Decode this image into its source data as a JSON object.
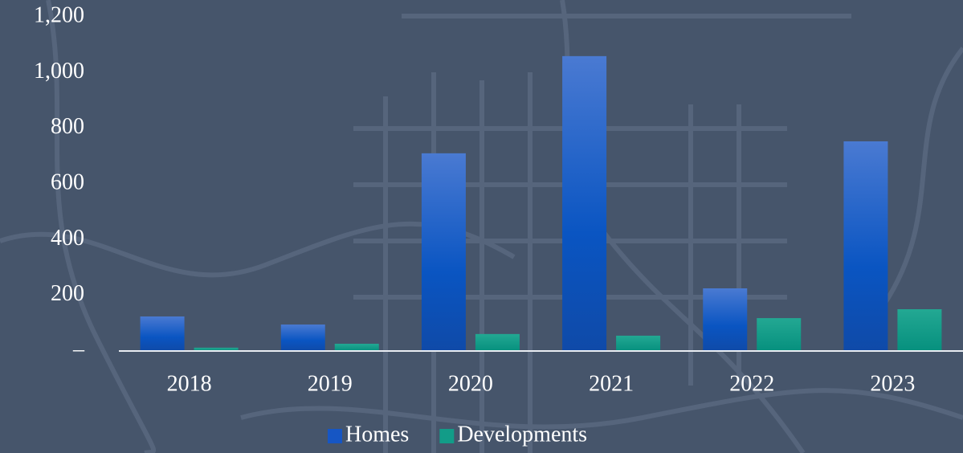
{
  "chart_data": {
    "type": "bar",
    "categories": [
      "2018",
      "2019",
      "2020",
      "2021",
      "2022",
      "2023"
    ],
    "series": [
      {
        "name": "Homes",
        "color": "#1656c4",
        "values": [
          124,
          95,
          710,
          1059,
          225,
          753
        ]
      },
      {
        "name": "Developments",
        "color": "#129c88",
        "values": [
          12,
          26,
          61,
          55,
          118,
          150
        ]
      }
    ],
    "ylim": [
      0,
      1200
    ],
    "yticks": [
      {
        "value": 0,
        "label": "–"
      },
      200,
      400,
      600,
      800,
      {
        "value": 1000,
        "label": "1,000"
      },
      {
        "value": 1200,
        "label": "1,200"
      }
    ],
    "grid": false,
    "legend": "bottom"
  }
}
